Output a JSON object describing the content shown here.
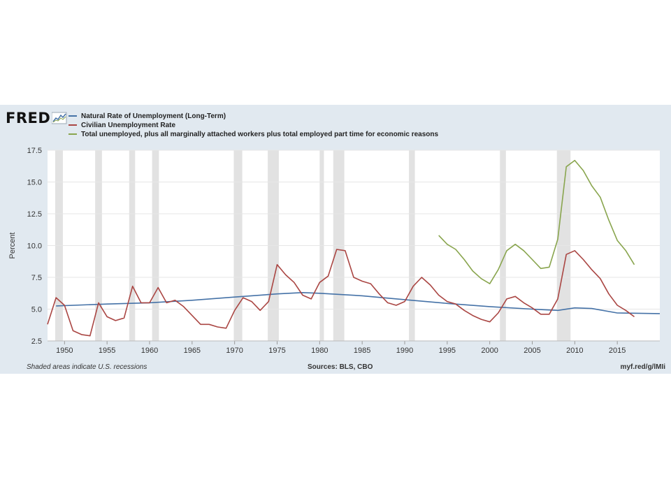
{
  "logo": {
    "text": "FRED"
  },
  "chart_data": {
    "type": "line",
    "title": "",
    "xlabel": "",
    "ylabel": "Percent",
    "xlim": [
      1948,
      2020
    ],
    "ylim": [
      2.5,
      17.5
    ],
    "grid": true,
    "legend_position": "top-left",
    "x_ticks": [
      1950,
      1955,
      1960,
      1965,
      1970,
      1975,
      1980,
      1985,
      1990,
      1995,
      2000,
      2005,
      2010,
      2015
    ],
    "y_ticks": [
      2.5,
      5.0,
      7.5,
      10.0,
      12.5,
      15.0,
      17.5
    ],
    "y_tick_labels": [
      "2.5",
      "5.0",
      "7.5",
      "10.0",
      "12.5",
      "15.0",
      "17.5"
    ],
    "recessions": [
      [
        1948.9,
        1949.8
      ],
      [
        1953.6,
        1954.4
      ],
      [
        1957.6,
        1958.3
      ],
      [
        1960.3,
        1961.1
      ],
      [
        1969.9,
        1970.9
      ],
      [
        1973.9,
        1975.2
      ],
      [
        1980.0,
        1980.5
      ],
      [
        1981.6,
        1982.9
      ],
      [
        1990.5,
        1991.2
      ],
      [
        2001.2,
        2001.9
      ],
      [
        2007.9,
        2009.5
      ]
    ],
    "series": [
      {
        "name": "Natural Rate of Unemployment (Long-Term)",
        "color": "#4572a7",
        "x": [
          1949,
          1955,
          1960,
          1965,
          1970,
          1975,
          1978,
          1980,
          1985,
          1990,
          1995,
          2000,
          2005,
          2008,
          2010,
          2012,
          2015,
          2020
        ],
        "y": [
          5.25,
          5.4,
          5.5,
          5.7,
          5.95,
          6.2,
          6.3,
          6.25,
          6.05,
          5.75,
          5.45,
          5.2,
          5.0,
          4.9,
          5.1,
          5.05,
          4.7,
          4.65
        ]
      },
      {
        "name": "Civilian Unemployment Rate",
        "color": "#aa4643",
        "x": [
          1948,
          1949,
          1950,
          1951,
          1952,
          1953,
          1954,
          1955,
          1956,
          1957,
          1958,
          1959,
          1960,
          1961,
          1962,
          1963,
          1964,
          1965,
          1966,
          1967,
          1968,
          1969,
          1970,
          1971,
          1972,
          1973,
          1974,
          1975,
          1976,
          1977,
          1978,
          1979,
          1980,
          1981,
          1982,
          1983,
          1984,
          1985,
          1986,
          1987,
          1988,
          1989,
          1990,
          1991,
          1992,
          1993,
          1994,
          1995,
          1996,
          1997,
          1998,
          1999,
          2000,
          2001,
          2002,
          2003,
          2004,
          2005,
          2006,
          2007,
          2008,
          2009,
          2010,
          2011,
          2012,
          2013,
          2014,
          2015,
          2016,
          2017
        ],
        "y": [
          3.8,
          5.9,
          5.3,
          3.3,
          3.0,
          2.9,
          5.5,
          4.4,
          4.1,
          4.3,
          6.8,
          5.5,
          5.5,
          6.7,
          5.5,
          5.7,
          5.2,
          4.5,
          3.8,
          3.8,
          3.6,
          3.5,
          4.9,
          5.9,
          5.6,
          4.9,
          5.6,
          8.5,
          7.7,
          7.1,
          6.1,
          5.8,
          7.1,
          7.6,
          9.7,
          9.6,
          7.5,
          7.2,
          7.0,
          6.2,
          5.5,
          5.3,
          5.6,
          6.8,
          7.5,
          6.9,
          6.1,
          5.6,
          5.4,
          4.9,
          4.5,
          4.2,
          4.0,
          4.7,
          5.8,
          6.0,
          5.5,
          5.1,
          4.6,
          4.6,
          5.8,
          9.3,
          9.6,
          8.9,
          8.1,
          7.4,
          6.2,
          5.3,
          4.9,
          4.4
        ]
      },
      {
        "name": "Total unemployed, plus all marginally attached workers plus total employed part time for economic reasons",
        "color": "#89a54e",
        "x": [
          1994,
          1995,
          1996,
          1997,
          1998,
          1999,
          2000,
          2001,
          2002,
          2003,
          2004,
          2005,
          2006,
          2007,
          2008,
          2009,
          2010,
          2011,
          2012,
          2013,
          2014,
          2015,
          2016,
          2017
        ],
        "y": [
          10.8,
          10.1,
          9.7,
          8.9,
          8.0,
          7.4,
          7.0,
          8.1,
          9.6,
          10.1,
          9.6,
          8.9,
          8.2,
          8.3,
          10.5,
          16.2,
          16.7,
          15.9,
          14.7,
          13.8,
          12.0,
          10.4,
          9.6,
          8.5
        ]
      }
    ]
  },
  "footer": {
    "note": "Shaded areas indicate U.S. recessions",
    "sources": "Sources: BLS, CBO",
    "link": "myf.red/g/lMIi"
  }
}
